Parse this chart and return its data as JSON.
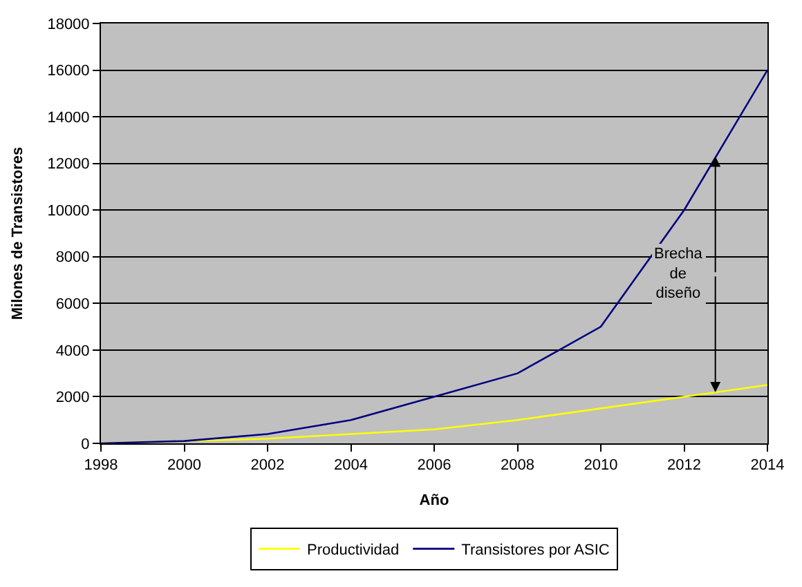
{
  "chart_data": {
    "type": "line",
    "xlabel": "Año",
    "ylabel": "Milones de Transistores",
    "x": [
      1998,
      2000,
      2002,
      2004,
      2006,
      2008,
      2010,
      2012,
      2014
    ],
    "series": [
      {
        "name": "Productividad",
        "color": "#ffff00",
        "values": [
          0,
          null,
          200,
          400,
          600,
          1000,
          1500,
          2000,
          2500
        ]
      },
      {
        "name": "Transistores por ASIC",
        "color": "#000080",
        "values": [
          0,
          100,
          400,
          1000,
          2000,
          3000,
          5000,
          10000,
          16000
        ]
      }
    ],
    "xlim": [
      1998,
      2014
    ],
    "xticks": [
      1998,
      2000,
      2002,
      2004,
      2006,
      2008,
      2010,
      2012,
      2014
    ],
    "ylim": [
      0,
      18000
    ],
    "yticks": [
      0,
      2000,
      4000,
      6000,
      8000,
      10000,
      12000,
      14000,
      16000,
      18000
    ],
    "grid": "y",
    "legend": "bottom",
    "marker": "none",
    "line_style": "solid",
    "annotations": [
      {
        "text": "Brecha\nde\ndiseño",
        "x": 2012.75,
        "y": 12300
      }
    ]
  }
}
